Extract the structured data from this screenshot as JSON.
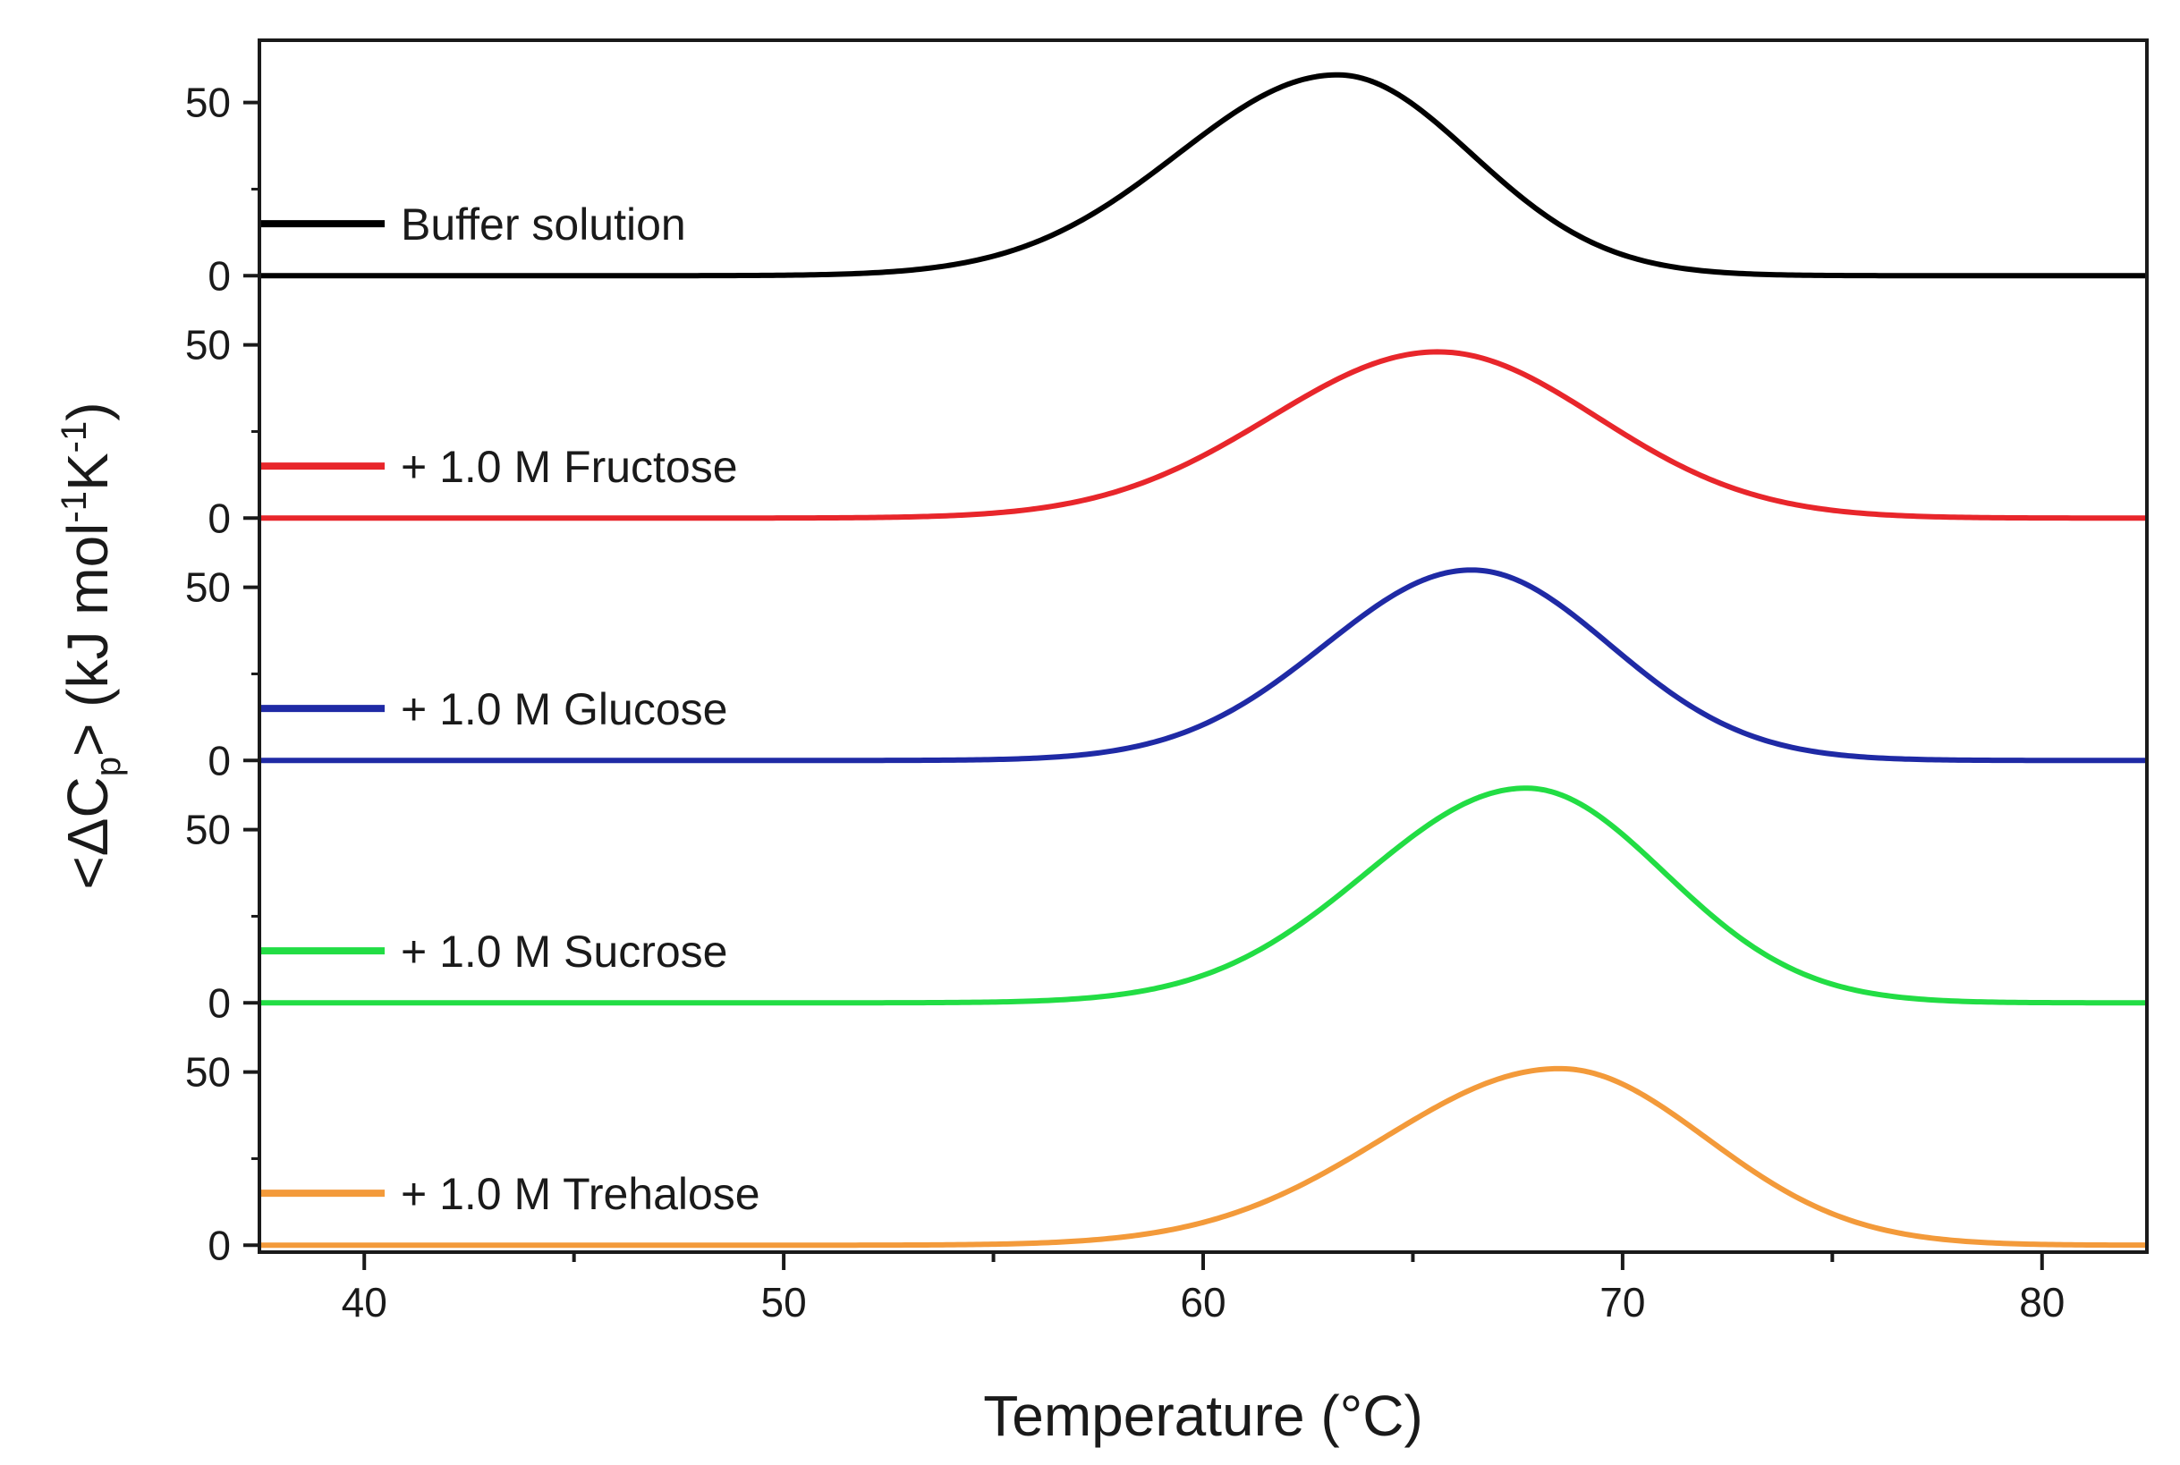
{
  "chart_data": {
    "type": "line",
    "layout": "stacked-panels",
    "xlabel": "Temperature (°C)",
    "ylabel": {
      "prefix": "<ΔC",
      "sub": "p",
      "middle": "> (kJ mol",
      "sup1": "-1",
      "middle2": "K",
      "sup2": "-1",
      "suffix": ")"
    },
    "xlim": [
      37.5,
      82.5
    ],
    "xticks": [
      40,
      50,
      60,
      70,
      80
    ],
    "xtick_labels": [
      "40",
      "50",
      "60",
      "70",
      "80"
    ],
    "panel_ylim": [
      -2,
      68
    ],
    "yticks": [
      0,
      50
    ],
    "ytick_labels": [
      "0",
      "50"
    ],
    "series": [
      {
        "name": "Buffer solution",
        "color": "#000000",
        "peak_temp": 63.2,
        "peak_value": 58,
        "width_low": 3.8,
        "width_high": 3.2
      },
      {
        "name": "+ 1.0 M Fructose",
        "color": "#e8262b",
        "peak_temp": 65.6,
        "peak_value": 48,
        "width_low": 4.0,
        "width_high": 3.8
      },
      {
        "name": "+ 1.0 M Glucose",
        "color": "#1f2aa5",
        "peak_temp": 66.4,
        "peak_value": 55,
        "width_low": 3.5,
        "width_high": 3.3
      },
      {
        "name": "+ 1.0 M Sucrose",
        "color": "#22dd44",
        "peak_temp": 67.7,
        "peak_value": 62,
        "width_low": 3.8,
        "width_high": 3.3
      },
      {
        "name": "+ 1.0 M Trehalose",
        "color": "#f39a3a",
        "peak_temp": 68.5,
        "peak_value": 51,
        "width_low": 4.2,
        "width_high": 3.5
      }
    ]
  }
}
